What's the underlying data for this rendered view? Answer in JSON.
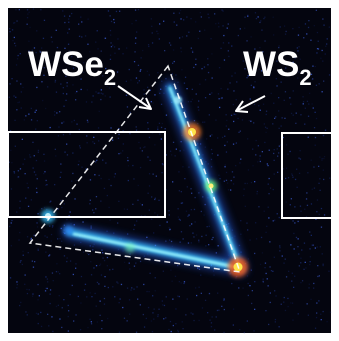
{
  "figure": {
    "colors": {
      "frame": "#ffffff",
      "background": "#04050f",
      "noise_dim": "#1b2f7a",
      "noise_mid": "#3a5ad0",
      "flake_core": "#ffe34a",
      "flake_hot": "#ff7a1a",
      "flake_glow": "#39c3ff",
      "overlay": "#ffffff"
    },
    "labels": {
      "wse2_main": "WSe",
      "wse2_sub": "2",
      "ws2_main": "WS",
      "ws2_sub": "2"
    }
  }
}
